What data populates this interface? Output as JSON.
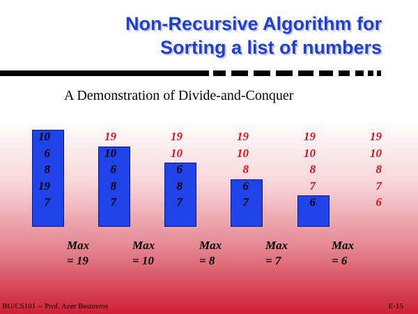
{
  "slide": {
    "title_line1": "Non-Recursive Algorithm for",
    "title_line2": "Sorting a list of numbers",
    "subtitle": "A Demonstration of Divide-and-Conquer",
    "footer_left": "BU/CS101 -- Prof. Azer Bestavros",
    "footer_right": "E-15"
  },
  "steps": [
    {
      "sorted": [],
      "unsorted": [
        "10",
        "6",
        "8",
        "19",
        "7"
      ]
    },
    {
      "sorted": [
        "19"
      ],
      "unsorted": [
        "10",
        "6",
        "8",
        "7"
      ]
    },
    {
      "sorted": [
        "19",
        "10"
      ],
      "unsorted": [
        "6",
        "8",
        "7"
      ]
    },
    {
      "sorted": [
        "19",
        "10",
        "8"
      ],
      "unsorted": [
        "6",
        "7"
      ]
    },
    {
      "sorted": [
        "19",
        "10",
        "8",
        "7"
      ],
      "unsorted": [
        "6"
      ]
    },
    {
      "sorted": [
        "19",
        "10",
        "8",
        "7",
        "6"
      ],
      "unsorted": []
    }
  ],
  "max_labels": [
    {
      "line1": "Max",
      "line2": "= 19"
    },
    {
      "line1": "Max",
      "line2": "= 10"
    },
    {
      "line1": "Max",
      "line2": "= 8"
    },
    {
      "line1": "Max",
      "line2": "= 7"
    },
    {
      "line1": "Max",
      "line2": "= 6"
    }
  ],
  "colors": {
    "title": "#1f3fcf",
    "box": "#1f43e8",
    "sorted_text": "#e0101c",
    "unsorted_text": "#000000"
  }
}
